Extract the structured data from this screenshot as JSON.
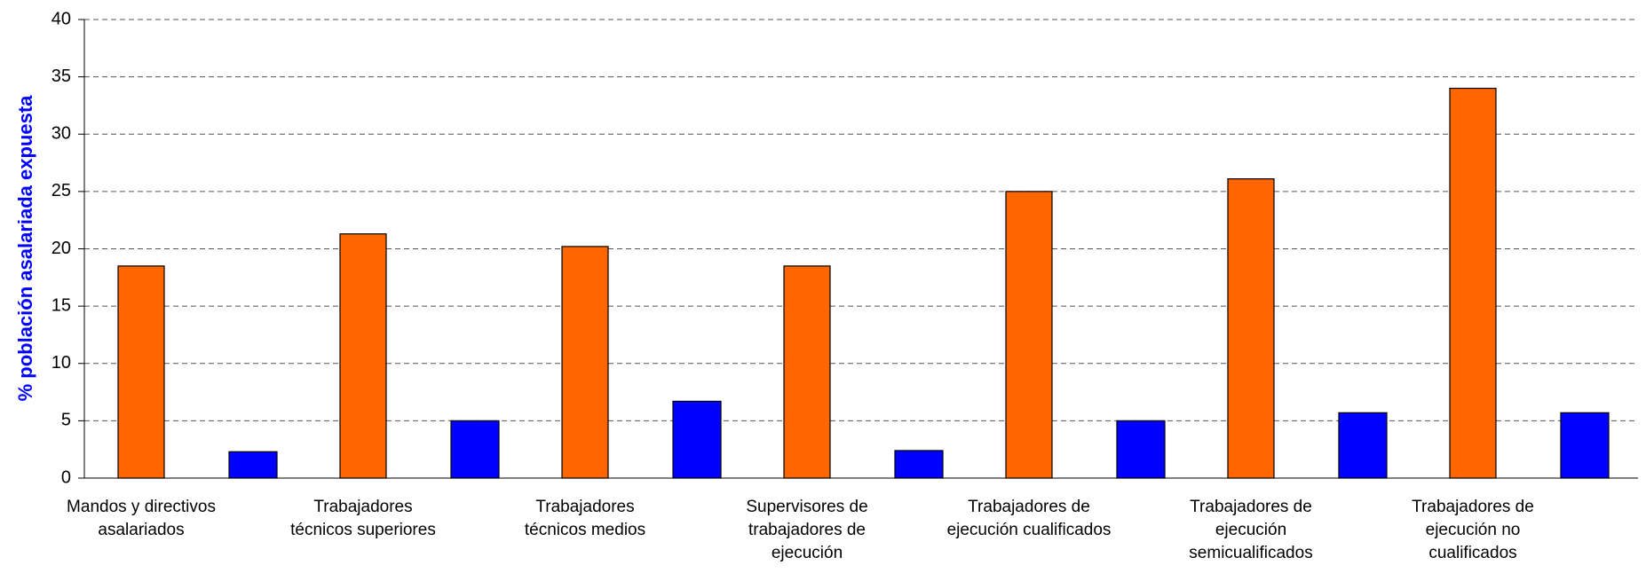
{
  "chart_data": {
    "type": "bar",
    "y_label": "% población asalariada expuesta",
    "categories": [
      "Mandos y directivos asalariados",
      "Trabajadores técnicos superiores",
      "Trabajadores técnicos medios",
      "Supervisores de trabajadores de ejecución",
      "Trabajadores de ejecución cualificados",
      "Trabajadores de ejecución semicualificados",
      "Trabajadores de ejecución no cualificados"
    ],
    "series": [
      {
        "color": "#ff6600",
        "values": [
          18.5,
          21.3,
          20.2,
          18.5,
          25,
          26.1,
          34
        ]
      },
      {
        "color": "#0000ff",
        "values": [
          2.3,
          5,
          6.7,
          2.4,
          5,
          5.7,
          5.7
        ]
      }
    ],
    "ylim": [
      0,
      40
    ],
    "yticks": [
      0,
      5,
      10,
      15,
      20,
      25,
      30,
      35,
      40
    ],
    "grid": true
  }
}
